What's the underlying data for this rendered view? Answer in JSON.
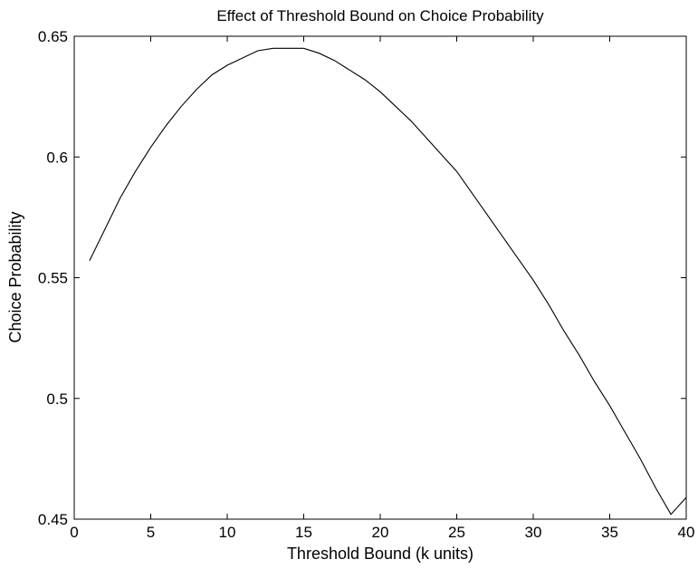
{
  "chart_data": {
    "type": "line",
    "title": "Effect of Threshold Bound on Choice Probability",
    "xlabel": "Threshold Bound (k units)",
    "ylabel": "Choice Probability",
    "xlim": [
      0,
      40
    ],
    "ylim": [
      0.45,
      0.65
    ],
    "x_ticks": [
      0,
      5,
      10,
      15,
      20,
      25,
      30,
      35,
      40
    ],
    "x_tick_labels": [
      "0",
      "5",
      "10",
      "15",
      "20",
      "25",
      "30",
      "35",
      "40"
    ],
    "y_ticks": [
      0.45,
      0.5,
      0.55,
      0.6,
      0.65
    ],
    "y_tick_labels": [
      "0.45",
      "0.5",
      "0.55",
      "0.6",
      "0.65"
    ],
    "grid": false,
    "line_color": "#000000",
    "series": [
      {
        "x": [
          1,
          2,
          3,
          4,
          5,
          6,
          7,
          8,
          9,
          10,
          11,
          12,
          13,
          14,
          15,
          16,
          17,
          18,
          19,
          20,
          21,
          22,
          23,
          24,
          25,
          26,
          27,
          28,
          29,
          30,
          31,
          32,
          33,
          34,
          35,
          36,
          37,
          38,
          39,
          40
        ],
        "values": [
          0.557,
          0.57,
          0.583,
          0.594,
          0.604,
          0.613,
          0.621,
          0.628,
          0.634,
          0.638,
          0.641,
          0.644,
          0.645,
          0.645,
          0.645,
          0.643,
          0.64,
          0.636,
          0.632,
          0.627,
          0.621,
          0.615,
          0.608,
          0.601,
          0.594,
          0.585,
          0.576,
          0.567,
          0.558,
          0.549,
          0.539,
          0.528,
          0.518,
          0.507,
          0.497,
          0.486,
          0.475,
          0.463,
          0.452,
          0.459
        ]
      }
    ]
  }
}
